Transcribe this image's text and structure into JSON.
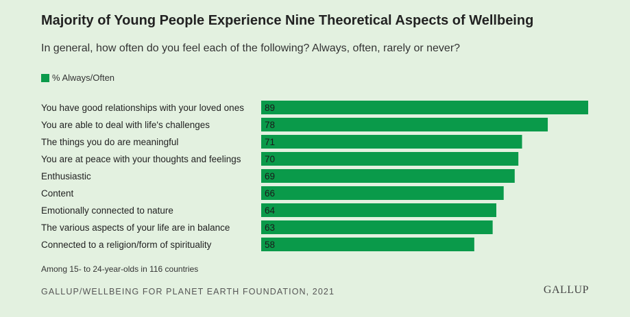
{
  "chart_data": {
    "type": "bar",
    "orientation": "horizontal",
    "title": "Majority of Young People Experience Nine Theoretical Aspects of Wellbeing",
    "subtitle": "In general, how often do you feel each of the following? Always, often, rarely or never?",
    "legend": [
      "% Always/Often"
    ],
    "legend_position": "top-left",
    "categories": [
      "You have good relationships with your loved ones",
      "You are able to deal with life's challenges",
      "The things you do are meaningful",
      "You are at peace with your thoughts and feelings",
      "Enthusiastic",
      "Content",
      "Emotionally connected to nature",
      "The various aspects of your life are in balance",
      "Connected to a religion/form of spirituality"
    ],
    "series": [
      {
        "name": "% Always/Often",
        "values": [
          89,
          78,
          71,
          70,
          69,
          66,
          64,
          63,
          58
        ]
      }
    ],
    "xlim": [
      0,
      89
    ],
    "grid": false,
    "bar_color": "#0a9a4a"
  },
  "note": "Among 15- to 24-year-olds in 116 countries",
  "source": "GALLUP/WELLBEING FOR PLANET EARTH FOUNDATION, 2021",
  "logo_text": "GALLUP",
  "colors": {
    "background": "#e3f1e0",
    "bar": "#0a9a4a"
  }
}
